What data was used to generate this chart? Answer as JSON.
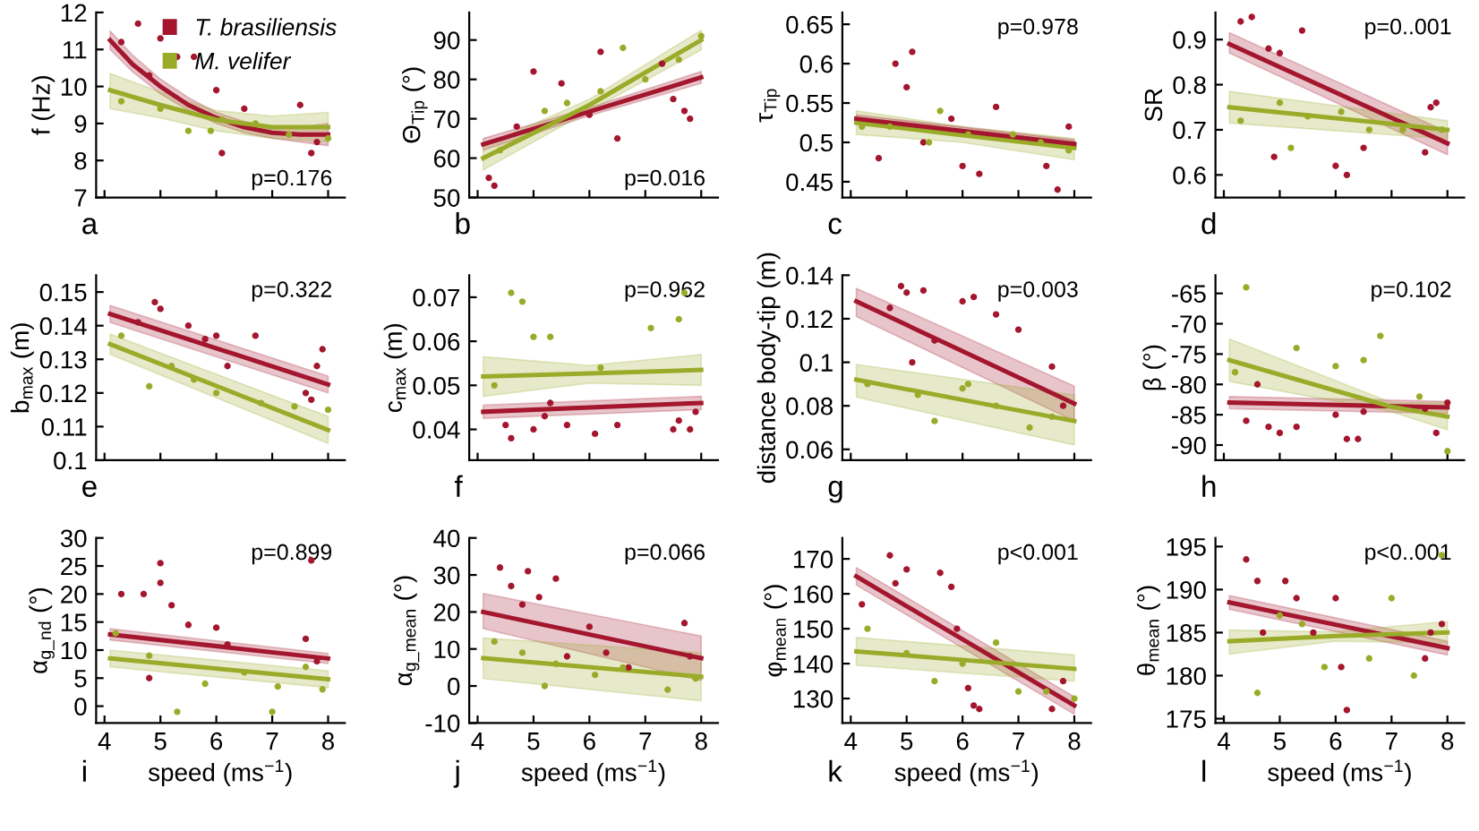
{
  "chart_data": [
    {
      "type": "line",
      "ylabel": "f (Hz)",
      "xlim": [
        3.85,
        8.3
      ],
      "xticks": [
        4,
        5,
        6,
        7,
        8
      ],
      "ylim": [
        7,
        12
      ],
      "yticks": [
        7,
        8,
        9,
        10,
        11,
        12
      ],
      "tick_labels": "y",
      "legend": "top",
      "annotations": [
        "a",
        "p=0.176"
      ],
      "series": [
        {
          "name": "T. brasiliensis",
          "color": "#a3162e",
          "x": [
            4.1,
            4.5,
            5,
            5.5,
            6,
            6.5,
            7,
            7.5,
            8
          ],
          "values": [
            11.25,
            10.6,
            10.0,
            9.5,
            9.15,
            8.9,
            8.75,
            8.7,
            8.7
          ],
          "lower": [
            11.0,
            10.4,
            9.8,
            9.35,
            9.0,
            8.75,
            8.6,
            8.5,
            8.4
          ],
          "upper": [
            11.5,
            10.85,
            10.2,
            9.7,
            9.3,
            9.05,
            8.9,
            8.9,
            9.0
          ]
        },
        {
          "name": "M. velifer",
          "color": "#9aab2a",
          "x": [
            4.1,
            5,
            6,
            7,
            8
          ],
          "values": [
            9.9,
            9.5,
            9.1,
            8.9,
            8.9
          ],
          "lower": [
            9.4,
            9.15,
            8.8,
            8.6,
            8.5
          ],
          "upper": [
            10.35,
            9.85,
            9.35,
            9.2,
            9.3
          ]
        },
        {
          "type": "scatter",
          "color": "#a3162e",
          "marker": "circle",
          "x": [
            4.3,
            4.6,
            5.0,
            5.3,
            5.6,
            6.0,
            6.1,
            6.5,
            7.5,
            7.7,
            7.8,
            4.8
          ],
          "values": [
            11.2,
            11.7,
            11.3,
            10.8,
            10.8,
            9.9,
            8.2,
            9.4,
            9.5,
            8.2,
            8.5,
            10.3
          ]
        },
        {
          "type": "scatter",
          "color": "#9aab2a",
          "marker": "circle",
          "x": [
            4.3,
            5.0,
            5.5,
            6.1,
            6.7,
            7.3,
            8.0,
            5.9
          ],
          "values": [
            9.6,
            9.4,
            8.8,
            9.1,
            9.0,
            8.7,
            8.6,
            8.8
          ]
        }
      ]
    },
    {
      "type": "line",
      "ylabel": "Θ$_{Tip}$ (°)",
      "xlim": [
        3.85,
        8.3
      ],
      "xticks": [
        4,
        5,
        6,
        7,
        8
      ],
      "ylim": [
        50,
        97
      ],
      "yticks": [
        50,
        60,
        70,
        80,
        90
      ],
      "tick_labels": "y",
      "annotations": [
        "b",
        "p=0.016"
      ],
      "series": [
        {
          "color": "#a3162e",
          "x": [
            4.1,
            6,
            8
          ],
          "values": [
            63.5,
            71.8,
            80.5
          ],
          "lower": [
            62,
            70.8,
            79
          ],
          "upper": [
            65,
            72.8,
            82
          ]
        },
        {
          "color": "#9aab2a",
          "x": [
            4.1,
            6,
            8
          ],
          "values": [
            60,
            73.5,
            90
          ],
          "lower": [
            57,
            72,
            87.5
          ],
          "upper": [
            63,
            75,
            92.5
          ]
        },
        {
          "type": "scatter",
          "color": "#a3162e",
          "marker": "circle",
          "x": [
            4.2,
            4.3,
            4.7,
            5.0,
            5.5,
            6.0,
            6.2,
            6.5,
            7.5,
            7.7,
            7.8,
            7.3
          ],
          "values": [
            55,
            53,
            68,
            82,
            79,
            71,
            87,
            65,
            75,
            72,
            70,
            84
          ]
        },
        {
          "type": "scatter",
          "color": "#9aab2a",
          "marker": "circle",
          "x": [
            4.4,
            5.2,
            6.2,
            6.6,
            7.0,
            7.6,
            8.0,
            5.6
          ],
          "values": [
            62,
            72,
            77,
            88,
            80,
            85,
            91,
            74
          ]
        }
      ]
    },
    {
      "type": "line",
      "ylabel": "τ$_{Tip}$",
      "xlim": [
        3.85,
        8.3
      ],
      "xticks": [
        4,
        5,
        6,
        7,
        8
      ],
      "ylim": [
        0.43,
        0.665
      ],
      "yticks": [
        0.45,
        0.5,
        0.55,
        0.6,
        0.65
      ],
      "tick_labels": "y",
      "annotations": [
        "c",
        "p=0.978"
      ],
      "series": [
        {
          "color": "#9aab2a",
          "x": [
            4.1,
            6,
            8
          ],
          "values": [
            0.525,
            0.509,
            0.493
          ],
          "lower": [
            0.51,
            0.5,
            0.478
          ],
          "upper": [
            0.54,
            0.52,
            0.505
          ]
        },
        {
          "color": "#a3162e",
          "x": [
            4.1,
            8
          ],
          "values": [
            0.53,
            0.498
          ],
          "lower": [
            0.525,
            0.493
          ],
          "upper": [
            0.535,
            0.503
          ]
        },
        {
          "type": "scatter",
          "color": "#a3162e",
          "marker": "circle",
          "x": [
            4.5,
            4.8,
            5.0,
            5.3,
            5.8,
            6.0,
            6.3,
            6.6,
            7.5,
            7.7,
            7.9,
            5.1
          ],
          "values": [
            0.48,
            0.6,
            0.57,
            0.5,
            0.53,
            0.47,
            0.46,
            0.545,
            0.47,
            0.44,
            0.52,
            0.615
          ]
        },
        {
          "type": "scatter",
          "color": "#9aab2a",
          "marker": "circle",
          "x": [
            4.2,
            4.7,
            5.4,
            6.1,
            6.9,
            7.4,
            7.9,
            5.6
          ],
          "values": [
            0.52,
            0.52,
            0.5,
            0.51,
            0.51,
            0.5,
            0.49,
            0.54
          ]
        }
      ]
    },
    {
      "type": "line",
      "ylabel": "SR",
      "xlim": [
        3.85,
        8.3
      ],
      "xticks": [
        4,
        5,
        6,
        7,
        8
      ],
      "ylim": [
        0.55,
        0.96
      ],
      "yticks": [
        0.6,
        0.7,
        0.8,
        0.9
      ],
      "tick_labels": "y",
      "annotations": [
        "d",
        "p=0..001"
      ],
      "series": [
        {
          "color": "#a3162e",
          "x": [
            4.1,
            8
          ],
          "values": [
            0.89,
            0.67
          ],
          "lower": [
            0.87,
            0.645
          ],
          "upper": [
            0.915,
            0.695
          ]
        },
        {
          "color": "#9aab2a",
          "x": [
            4.1,
            8
          ],
          "values": [
            0.75,
            0.7
          ],
          "lower": [
            0.715,
            0.68
          ],
          "upper": [
            0.785,
            0.72
          ]
        },
        {
          "type": "scatter",
          "color": "#a3162e",
          "marker": "circle",
          "x": [
            4.3,
            4.5,
            4.8,
            5.0,
            5.4,
            6.0,
            6.2,
            6.5,
            7.6,
            7.7,
            7.8,
            4.9
          ],
          "values": [
            0.94,
            0.95,
            0.88,
            0.87,
            0.92,
            0.62,
            0.6,
            0.66,
            0.65,
            0.75,
            0.76,
            0.64
          ]
        },
        {
          "type": "scatter",
          "color": "#9aab2a",
          "marker": "circle",
          "x": [
            4.3,
            5.0,
            5.5,
            6.1,
            6.6,
            7.2,
            7.9,
            5.2
          ],
          "values": [
            0.72,
            0.76,
            0.73,
            0.74,
            0.7,
            0.7,
            0.7,
            0.66
          ]
        }
      ]
    },
    {
      "type": "line",
      "ylabel": "b$_{max}$ (m)",
      "xlim": [
        3.85,
        8.3
      ],
      "xticks": [
        4,
        5,
        6,
        7,
        8
      ],
      "ylim": [
        0.1,
        0.155
      ],
      "yticks": [
        0.1,
        0.11,
        0.12,
        0.13,
        0.14,
        0.15
      ],
      "tick_labels": "y",
      "annotations": [
        "e",
        "p=0.322"
      ],
      "series": [
        {
          "color": "#a3162e",
          "x": [
            4.1,
            8
          ],
          "values": [
            0.1435,
            0.1225
          ],
          "lower": [
            0.141,
            0.12
          ],
          "upper": [
            0.146,
            0.125
          ]
        },
        {
          "color": "#9aab2a",
          "x": [
            4.1,
            8
          ],
          "values": [
            0.1345,
            0.109
          ],
          "lower": [
            0.1315,
            0.105
          ],
          "upper": [
            0.1375,
            0.113
          ]
        },
        {
          "type": "scatter",
          "color": "#a3162e",
          "marker": "circle",
          "x": [
            4.9,
            5.0,
            5.5,
            5.8,
            6.0,
            6.2,
            6.7,
            7.6,
            7.7,
            7.8,
            7.9,
            4.6
          ],
          "values": [
            0.147,
            0.145,
            0.14,
            0.136,
            0.137,
            0.128,
            0.137,
            0.12,
            0.118,
            0.128,
            0.133,
            0.141
          ]
        },
        {
          "type": "scatter",
          "color": "#9aab2a",
          "marker": "circle",
          "x": [
            4.3,
            4.8,
            5.2,
            6.0,
            6.8,
            7.4,
            8.0,
            5.6
          ],
          "values": [
            0.137,
            0.122,
            0.128,
            0.12,
            0.117,
            0.116,
            0.115,
            0.124
          ]
        }
      ]
    },
    {
      "type": "line",
      "ylabel": "c$_{max}$ (m)",
      "xlim": [
        3.85,
        8.3
      ],
      "xticks": [
        4,
        5,
        6,
        7,
        8
      ],
      "ylim": [
        0.033,
        0.075
      ],
      "yticks": [
        0.04,
        0.05,
        0.06,
        0.07
      ],
      "tick_labels": "y",
      "annotations": [
        "f",
        "p=0.962"
      ],
      "series": [
        {
          "color": "#a3162e",
          "x": [
            4.1,
            8
          ],
          "values": [
            0.044,
            0.046
          ],
          "lower": [
            0.0425,
            0.0445
          ],
          "upper": [
            0.0455,
            0.0475
          ]
        },
        {
          "color": "#9aab2a",
          "x": [
            4.1,
            6,
            8
          ],
          "values": [
            0.052,
            0.0527,
            0.0535
          ],
          "lower": [
            0.0475,
            0.0505,
            0.05
          ],
          "upper": [
            0.0565,
            0.0545,
            0.057
          ]
        },
        {
          "type": "scatter",
          "color": "#a3162e",
          "marker": "circle",
          "x": [
            4.5,
            4.6,
            5.0,
            5.2,
            5.6,
            6.1,
            6.5,
            7.5,
            7.6,
            7.8,
            7.9,
            5.3
          ],
          "values": [
            0.041,
            0.038,
            0.04,
            0.043,
            0.041,
            0.039,
            0.041,
            0.04,
            0.042,
            0.04,
            0.044,
            0.046
          ]
        },
        {
          "type": "scatter",
          "color": "#9aab2a",
          "marker": "circle",
          "x": [
            4.6,
            4.8,
            5.0,
            5.3,
            6.2,
            7.1,
            7.6,
            7.7,
            4.3
          ],
          "values": [
            0.071,
            0.069,
            0.061,
            0.061,
            0.054,
            0.063,
            0.065,
            0.071,
            0.05
          ]
        }
      ]
    },
    {
      "type": "line",
      "ylabel": "distance body-tip (m)",
      "xlim": [
        3.85,
        8.3
      ],
      "xticks": [
        4,
        5,
        6,
        7,
        8
      ],
      "ylim": [
        0.055,
        0.14
      ],
      "yticks": [
        0.06,
        0.08,
        0.1,
        0.12,
        0.14
      ],
      "tick_labels": "y",
      "annotations": [
        "g",
        "p=0.003"
      ],
      "series": [
        {
          "color": "#a3162e",
          "x": [
            4.1,
            8
          ],
          "values": [
            0.128,
            0.081
          ],
          "lower": [
            0.121,
            0.073
          ],
          "upper": [
            0.134,
            0.089
          ]
        },
        {
          "color": "#9aab2a",
          "x": [
            4.1,
            8
          ],
          "values": [
            0.092,
            0.073
          ],
          "lower": [
            0.084,
            0.062
          ],
          "upper": [
            0.099,
            0.085
          ]
        },
        {
          "type": "scatter",
          "color": "#a3162e",
          "marker": "circle",
          "x": [
            4.9,
            5.0,
            5.3,
            4.7,
            5.5,
            6.0,
            6.2,
            5.1,
            6.6,
            7.6,
            7.8,
            7.0
          ],
          "values": [
            0.135,
            0.132,
            0.133,
            0.125,
            0.11,
            0.128,
            0.13,
            0.1,
            0.122,
            0.098,
            0.08,
            0.115
          ]
        },
        {
          "type": "scatter",
          "color": "#9aab2a",
          "marker": "circle",
          "x": [
            4.3,
            5.2,
            6.0,
            6.1,
            6.6,
            7.2,
            7.6,
            5.5
          ],
          "values": [
            0.09,
            0.085,
            0.088,
            0.09,
            0.08,
            0.07,
            0.075,
            0.073
          ]
        }
      ]
    },
    {
      "type": "line",
      "ylabel": "β (°)",
      "xlim": [
        3.85,
        8.3
      ],
      "xticks": [
        4,
        5,
        6,
        7,
        8
      ],
      "ylim": [
        -92.5,
        -62
      ],
      "yticks": [
        -90,
        -85,
        -80,
        -75,
        -70,
        -65
      ],
      "tick_labels": "y",
      "annotations": [
        "h",
        "p=0.102"
      ],
      "series": [
        {
          "color": "#a3162e",
          "x": [
            4.1,
            8
          ],
          "values": [
            -83,
            -83.8
          ],
          "lower": [
            -84,
            -84.8
          ],
          "upper": [
            -82,
            -82.8
          ]
        },
        {
          "color": "#9aab2a",
          "x": [
            4.1,
            7,
            8
          ],
          "values": [
            -76,
            -83.7,
            -85.3
          ],
          "lower": [
            -79.5,
            -84.5,
            -87.5
          ],
          "upper": [
            -72.5,
            -83,
            -83
          ]
        },
        {
          "type": "scatter",
          "color": "#a3162e",
          "marker": "circle",
          "x": [
            4.4,
            4.8,
            5.0,
            5.3,
            6.0,
            6.2,
            6.4,
            7.6,
            7.8,
            8.0,
            4.6,
            6.5
          ],
          "values": [
            -86,
            -87,
            -88,
            -87,
            -85,
            -89,
            -89,
            -84,
            -88,
            -83,
            -80,
            -84.5
          ]
        },
        {
          "type": "scatter",
          "color": "#9aab2a",
          "marker": "circle",
          "x": [
            4.4,
            4.2,
            5.3,
            6.0,
            6.5,
            6.8,
            7.5,
            8.0
          ],
          "values": [
            -64,
            -78,
            -74,
            -77,
            -76,
            -72,
            -82,
            -91
          ]
        }
      ]
    },
    {
      "type": "line",
      "ylabel": "α$_{g_nd}$ (°)",
      "xlabel": "speed (ms$^{−1}$)",
      "xlim": [
        3.85,
        8.3
      ],
      "xticks": [
        4,
        5,
        6,
        7,
        8
      ],
      "ylim": [
        -3,
        30
      ],
      "yticks": [
        0,
        5,
        10,
        15,
        20,
        25,
        30
      ],
      "annotations": [
        "i",
        "p=0.899"
      ],
      "series": [
        {
          "color": "#a3162e",
          "x": [
            4.1,
            8
          ],
          "values": [
            12.8,
            8.5
          ],
          "lower": [
            11.8,
            7.6
          ],
          "upper": [
            13.8,
            9.4
          ]
        },
        {
          "color": "#9aab2a",
          "x": [
            4.1,
            8
          ],
          "values": [
            8.5,
            4.8
          ],
          "lower": [
            7,
            3.3
          ],
          "upper": [
            10,
            6.3
          ]
        },
        {
          "type": "scatter",
          "color": "#a3162e",
          "marker": "circle",
          "x": [
            4.3,
            4.7,
            5.0,
            5.0,
            5.2,
            5.5,
            6.0,
            6.2,
            7.6,
            7.7,
            7.8,
            4.8
          ],
          "values": [
            20,
            20,
            22,
            25.5,
            18,
            14.5,
            14,
            11,
            12,
            26,
            8,
            5
          ]
        },
        {
          "type": "scatter",
          "color": "#9aab2a",
          "marker": "circle",
          "x": [
            4.2,
            4.8,
            5.3,
            5.8,
            6.5,
            7.0,
            7.6,
            7.9,
            7.1
          ],
          "values": [
            13,
            9,
            -1,
            4,
            6,
            -1,
            7,
            3,
            3.5
          ]
        }
      ]
    },
    {
      "type": "line",
      "ylabel": "α$_{g_mean}$ (°)",
      "xlabel": "speed (ms$^{−1}$)",
      "xlim": [
        3.85,
        8.3
      ],
      "xticks": [
        4,
        5,
        6,
        7,
        8
      ],
      "ylim": [
        -10,
        40
      ],
      "yticks": [
        -10,
        0,
        10,
        20,
        30,
        40
      ],
      "annotations": [
        "j",
        "p=0.066"
      ],
      "series": [
        {
          "color": "#a3162e",
          "x": [
            4.1,
            8
          ],
          "values": [
            20,
            7.5
          ],
          "lower": [
            15.5,
            1.5
          ],
          "upper": [
            25,
            13.5
          ]
        },
        {
          "color": "#9aab2a",
          "x": [
            4.1,
            8
          ],
          "values": [
            7.5,
            2.5
          ],
          "lower": [
            2,
            -4
          ],
          "upper": [
            13,
            9
          ]
        },
        {
          "type": "scatter",
          "color": "#a3162e",
          "marker": "circle",
          "x": [
            4.4,
            4.6,
            4.9,
            5.1,
            5.4,
            4.8,
            5.6,
            6.0,
            6.3,
            7.7,
            7.8,
            6.7
          ],
          "values": [
            32,
            27,
            31,
            24,
            29,
            22,
            8,
            16,
            9,
            17,
            8,
            5
          ]
        },
        {
          "type": "scatter",
          "color": "#9aab2a",
          "marker": "circle",
          "x": [
            4.3,
            4.8,
            5.4,
            6.1,
            6.6,
            7.4,
            7.9,
            5.2
          ],
          "values": [
            12,
            9,
            6,
            3,
            5,
            -1,
            2,
            0
          ]
        }
      ]
    },
    {
      "type": "line",
      "ylabel": "φ$_{mean}$ (°)",
      "xlabel": "speed (ms$^{−1}$)",
      "xlim": [
        3.85,
        8.3
      ],
      "xticks": [
        4,
        5,
        6,
        7,
        8
      ],
      "ylim": [
        123,
        176
      ],
      "yticks": [
        130,
        140,
        150,
        160,
        170
      ],
      "annotations": [
        "k",
        "p<0.001"
      ],
      "series": [
        {
          "color": "#a3162e",
          "x": [
            4.1,
            8
          ],
          "values": [
            165,
            128
          ],
          "lower": [
            162.5,
            125.5
          ],
          "upper": [
            167.5,
            130.5
          ]
        },
        {
          "color": "#9aab2a",
          "x": [
            4.1,
            8
          ],
          "values": [
            143.5,
            138.5
          ],
          "lower": [
            139.5,
            135
          ],
          "upper": [
            147.5,
            142.5
          ]
        },
        {
          "type": "scatter",
          "color": "#a3162e",
          "marker": "circle",
          "x": [
            4.7,
            4.8,
            5.0,
            5.6,
            5.8,
            6.1,
            6.2,
            6.3,
            7.6,
            7.8,
            4.2,
            5.9
          ],
          "values": [
            171,
            163,
            167,
            166,
            162,
            133,
            128,
            127,
            127,
            135,
            157,
            150
          ]
        },
        {
          "type": "scatter",
          "color": "#9aab2a",
          "marker": "circle",
          "x": [
            4.3,
            5.0,
            5.5,
            6.6,
            7.0,
            7.5,
            8.0,
            6.0
          ],
          "values": [
            150,
            143,
            135,
            146,
            132,
            132,
            130,
            140
          ]
        }
      ]
    },
    {
      "type": "line",
      "ylabel": "θ$_{mean}$ (°)",
      "xlabel": "speed (ms$^{−1}$)",
      "xlim": [
        3.85,
        8.3
      ],
      "xticks": [
        4,
        5,
        6,
        7,
        8
      ],
      "ylim": [
        174.5,
        196
      ],
      "yticks": [
        175,
        180,
        185,
        190,
        195
      ],
      "annotations": [
        "l",
        "p<0..001"
      ],
      "series": [
        {
          "color": "#a3162e",
          "x": [
            4.1,
            8
          ],
          "values": [
            188.5,
            183.2
          ],
          "lower": [
            187.7,
            182.4
          ],
          "upper": [
            189.3,
            184
          ]
        },
        {
          "color": "#9aab2a",
          "x": [
            4.1,
            6,
            8
          ],
          "values": [
            184,
            184.6,
            185
          ],
          "lower": [
            182.5,
            184,
            183.8
          ],
          "upper": [
            185.3,
            185.1,
            186.3
          ]
        },
        {
          "type": "scatter",
          "color": "#a3162e",
          "marker": "circle",
          "x": [
            4.4,
            4.6,
            5.1,
            5.3,
            5.6,
            6.0,
            6.1,
            6.2,
            7.6,
            7.7,
            7.9,
            4.7
          ],
          "values": [
            193.5,
            191,
            191,
            189,
            185,
            189,
            181,
            176,
            182,
            185,
            186,
            185
          ]
        },
        {
          "type": "scatter",
          "color": "#9aab2a",
          "marker": "circle",
          "x": [
            4.6,
            5.0,
            5.8,
            6.6,
            7.0,
            7.4,
            7.9,
            5.4
          ],
          "values": [
            178,
            187,
            181,
            182,
            189,
            180,
            194,
            186
          ]
        }
      ]
    }
  ]
}
